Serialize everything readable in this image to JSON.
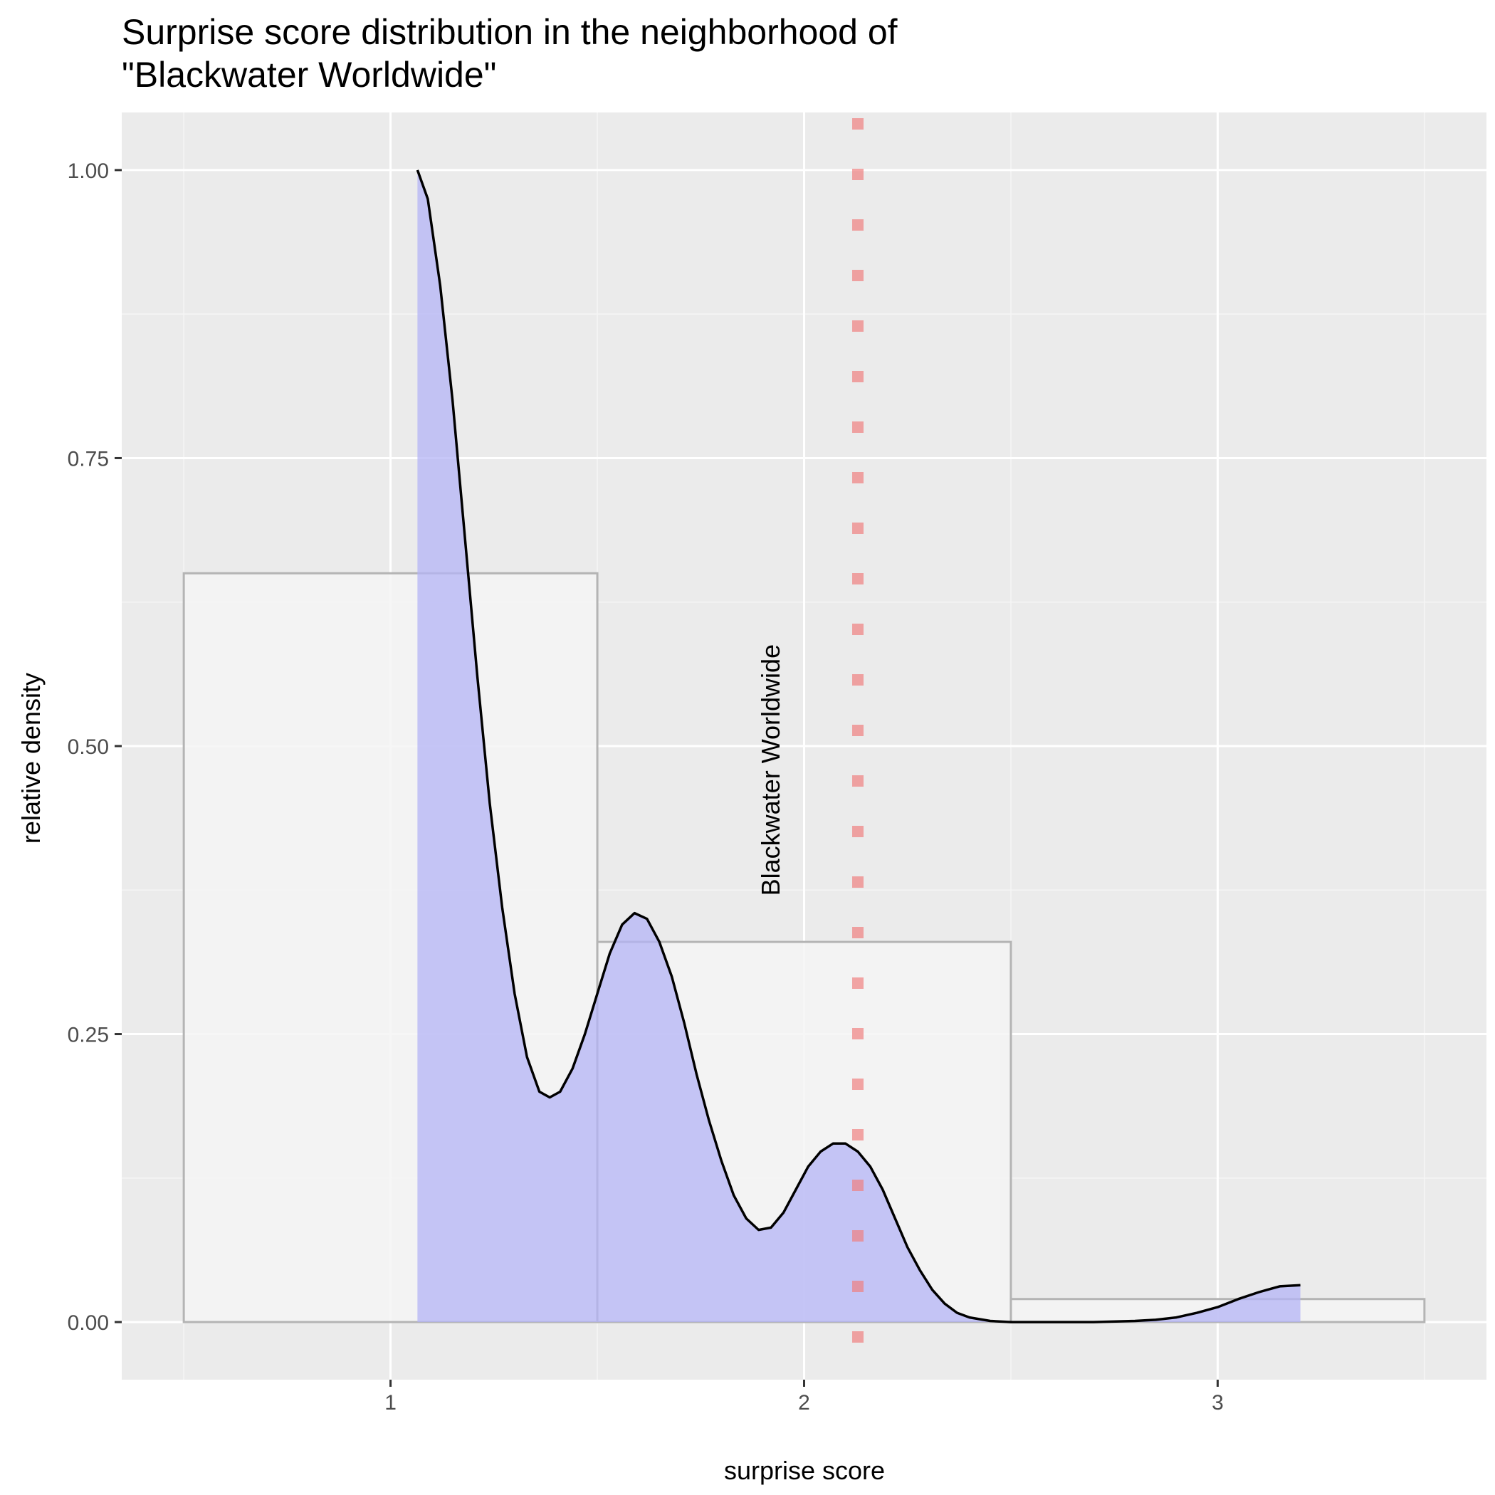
{
  "chart_data": {
    "type": "area",
    "title": "Surprise score distribution in the neighborhood of",
    "subtitle": "\"Blackwater Worldwide\"",
    "xlabel": "surprise score",
    "ylabel": "relative density",
    "xlim": [
      0.35,
      3.65
    ],
    "ylim": [
      -0.05,
      1.05
    ],
    "xticks": [
      1,
      2,
      3
    ],
    "xtick_labels": [
      "1",
      "2",
      "3"
    ],
    "yticks": [
      0.0,
      0.25,
      0.5,
      0.75,
      1.0
    ],
    "ytick_labels": [
      "0.00",
      "0.25",
      "0.50",
      "0.75",
      "1.00"
    ],
    "grid": true,
    "histogram": {
      "bins": [
        {
          "x0": 0.5,
          "x1": 1.5,
          "value": 0.65
        },
        {
          "x0": 1.5,
          "x1": 2.5,
          "value": 0.33
        },
        {
          "x0": 2.5,
          "x1": 3.5,
          "value": 0.02
        }
      ],
      "fill": "#f4f4f4",
      "stroke": "#b4b4b4"
    },
    "density": {
      "fill": "#b4b4f6",
      "line_color": "#000000",
      "points": [
        [
          1.065,
          1.0
        ],
        [
          1.09,
          0.975
        ],
        [
          1.12,
          0.9
        ],
        [
          1.15,
          0.8
        ],
        [
          1.18,
          0.68
        ],
        [
          1.21,
          0.56
        ],
        [
          1.24,
          0.45
        ],
        [
          1.27,
          0.36
        ],
        [
          1.3,
          0.285
        ],
        [
          1.33,
          0.23
        ],
        [
          1.36,
          0.2
        ],
        [
          1.385,
          0.195
        ],
        [
          1.41,
          0.2
        ],
        [
          1.44,
          0.22
        ],
        [
          1.47,
          0.25
        ],
        [
          1.5,
          0.285
        ],
        [
          1.53,
          0.32
        ],
        [
          1.56,
          0.345
        ],
        [
          1.59,
          0.355
        ],
        [
          1.62,
          0.35
        ],
        [
          1.65,
          0.33
        ],
        [
          1.68,
          0.3
        ],
        [
          1.71,
          0.26
        ],
        [
          1.74,
          0.215
        ],
        [
          1.77,
          0.175
        ],
        [
          1.8,
          0.14
        ],
        [
          1.83,
          0.11
        ],
        [
          1.86,
          0.09
        ],
        [
          1.89,
          0.08
        ],
        [
          1.92,
          0.082
        ],
        [
          1.95,
          0.095
        ],
        [
          1.98,
          0.115
        ],
        [
          2.01,
          0.135
        ],
        [
          2.04,
          0.148
        ],
        [
          2.07,
          0.155
        ],
        [
          2.1,
          0.155
        ],
        [
          2.13,
          0.148
        ],
        [
          2.16,
          0.135
        ],
        [
          2.19,
          0.115
        ],
        [
          2.22,
          0.09
        ],
        [
          2.25,
          0.065
        ],
        [
          2.28,
          0.045
        ],
        [
          2.31,
          0.028
        ],
        [
          2.34,
          0.016
        ],
        [
          2.37,
          0.008
        ],
        [
          2.4,
          0.004
        ],
        [
          2.45,
          0.001
        ],
        [
          2.5,
          0.0
        ],
        [
          2.6,
          0.0
        ],
        [
          2.7,
          0.0
        ],
        [
          2.8,
          0.001
        ],
        [
          2.85,
          0.002
        ],
        [
          2.9,
          0.004
        ],
        [
          2.95,
          0.008
        ],
        [
          3.0,
          0.013
        ],
        [
          3.05,
          0.02
        ],
        [
          3.1,
          0.026
        ],
        [
          3.15,
          0.031
        ],
        [
          3.2,
          0.032
        ]
      ]
    },
    "reference_line": {
      "x": 2.13,
      "label": "Blackwater Worldwide",
      "label_x": 1.92,
      "label_y": 0.37,
      "color": "#f08080"
    }
  }
}
